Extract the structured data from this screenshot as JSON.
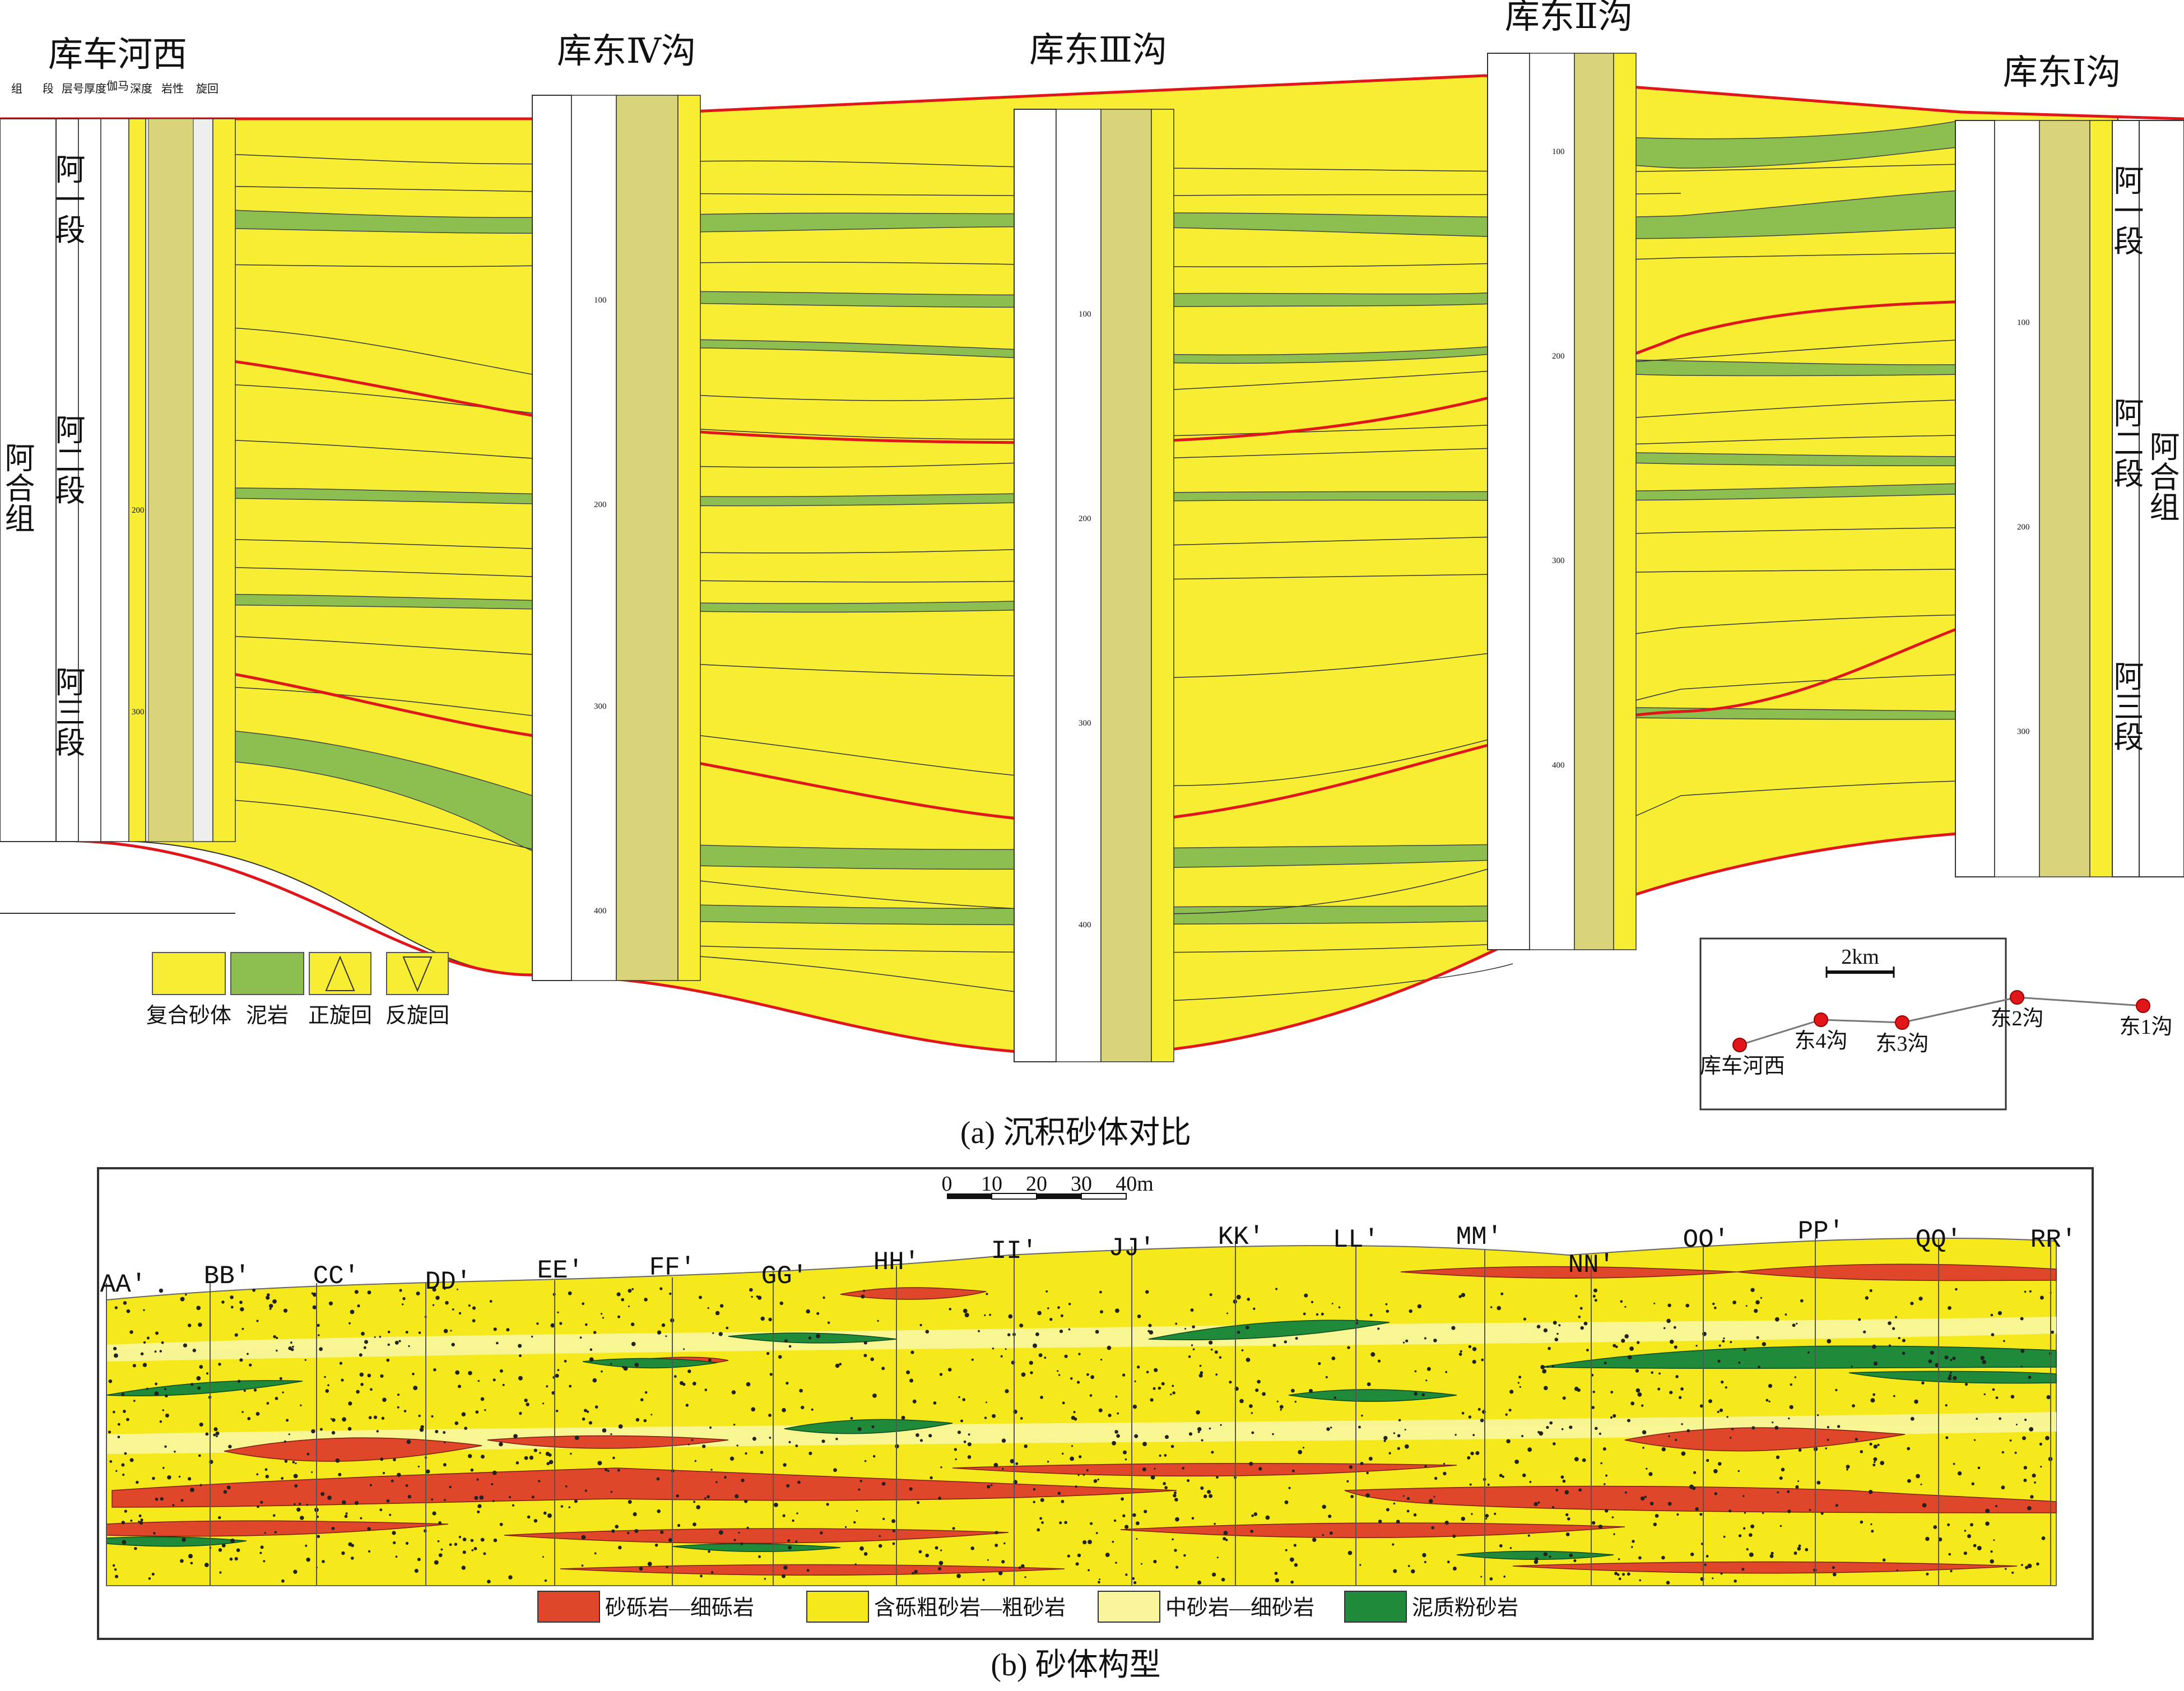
{
  "panel_a": {
    "caption": "(a) 沉积砂体对比",
    "wells": [
      {
        "name": "库车河西"
      },
      {
        "name": "库东Ⅳ沟"
      },
      {
        "name": "库东Ⅲ沟"
      },
      {
        "name": "库东Ⅱ沟"
      },
      {
        "name": "库东Ⅰ沟"
      }
    ],
    "column_headers": {
      "group": "组",
      "member": "段",
      "layer": "层号",
      "thickness": "厚度",
      "gamma": "伽马",
      "depth": "深度",
      "lithology": "岩性",
      "cycle": "旋回"
    },
    "formation": "阿合组",
    "members": [
      "阿一段",
      "阿二段",
      "阿三段"
    ],
    "depth_ticks": [
      "100",
      "200",
      "300",
      "400"
    ],
    "legend": [
      {
        "label": "复合砂体",
        "color": "#f7ee33",
        "type": "swatch"
      },
      {
        "label": "泥岩",
        "color": "#8cbf50",
        "type": "swatch"
      },
      {
        "label": "正旋回",
        "color": "#f7ee33",
        "type": "triangle-up"
      },
      {
        "label": "反旋回",
        "color": "#f7ee33",
        "type": "triangle-down"
      }
    ],
    "location_map": {
      "scale_label": "2km",
      "points": [
        "库车河西",
        "东4沟",
        "东3沟",
        "东2沟",
        "东1沟"
      ]
    },
    "boundary_color": "#e0161a"
  },
  "panel_b": {
    "caption": "(b) 砂体构型",
    "scale": {
      "ticks": [
        "0",
        "10",
        "20",
        "30",
        "40m"
      ]
    },
    "sections": [
      "AA'",
      "BB'",
      "CC'",
      "DD'",
      "EE'",
      "FF'",
      "GG'",
      "HH'",
      "II'",
      "JJ'",
      "KK'",
      "LL'",
      "MM'",
      "NN'",
      "OO'",
      "PP'",
      "QQ'",
      "RR'"
    ],
    "legend": [
      {
        "label": "砂砾岩—细砾岩",
        "color": "#e0462a"
      },
      {
        "label": "含砾粗砂岩—粗砂岩",
        "color": "#f5e91c"
      },
      {
        "label": "中砂岩—细砂岩",
        "color": "#f8f59a"
      },
      {
        "label": "泥质粉砂岩",
        "color": "#1f8a3a"
      }
    ]
  },
  "colors": {
    "sand": "#f7ee33",
    "mud": "#8cbf50",
    "red": "#e0161a",
    "gravel": "#e0462a",
    "coarse": "#f5e91c",
    "fine": "#f8f59a",
    "silt": "#1f8a3a"
  }
}
